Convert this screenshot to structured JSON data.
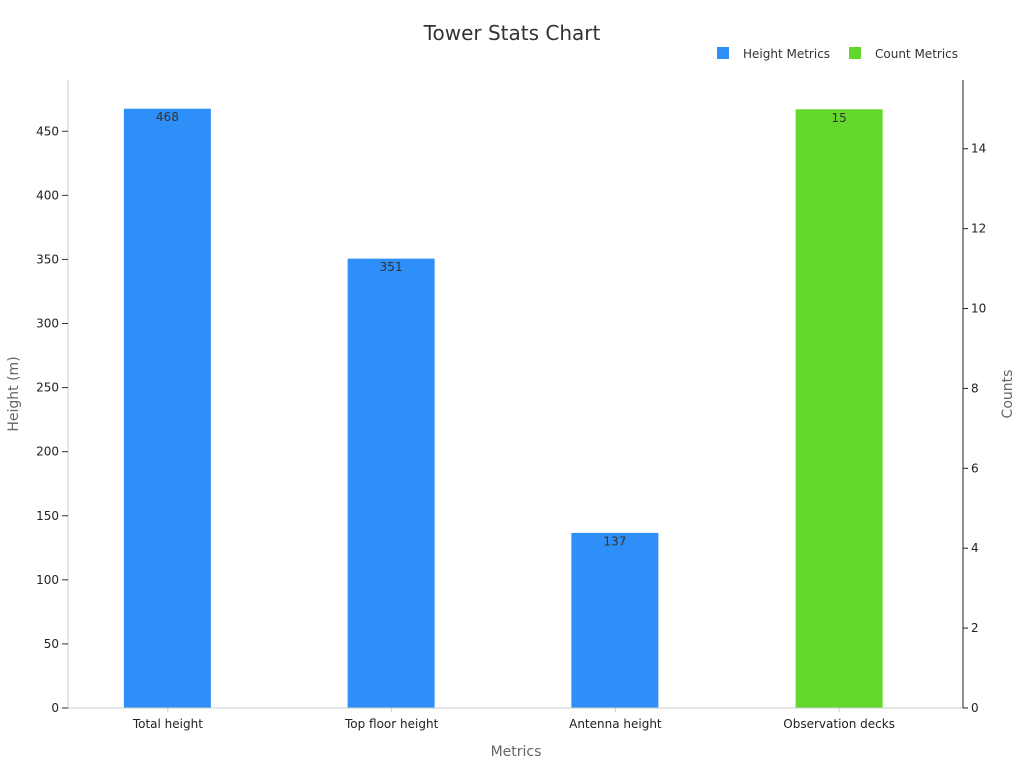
{
  "chart_data": {
    "type": "bar",
    "title": "Tower Stats Chart",
    "xlabel": "Metrics",
    "ylabel": "Height (m)",
    "y2label": "Counts",
    "categories": [
      "Total height",
      "Top floor height",
      "Antenna height",
      "Observation decks"
    ],
    "series": [
      {
        "name": "Height Metrics",
        "axis": "left",
        "color": "#2d8ff7",
        "values": [
          468,
          351,
          137,
          null
        ]
      },
      {
        "name": "Count Metrics",
        "axis": "right",
        "color": "#64d82a",
        "values": [
          null,
          null,
          null,
          15
        ]
      }
    ],
    "ylim": [
      0,
      490
    ],
    "y2lim": [
      0,
      15.72
    ],
    "yticks": [
      0,
      50,
      100,
      150,
      200,
      250,
      300,
      350,
      400,
      450
    ],
    "y2ticks": [
      0,
      2,
      4,
      6,
      8,
      10,
      12,
      14
    ],
    "grid": false,
    "legend_position": "top-right"
  }
}
